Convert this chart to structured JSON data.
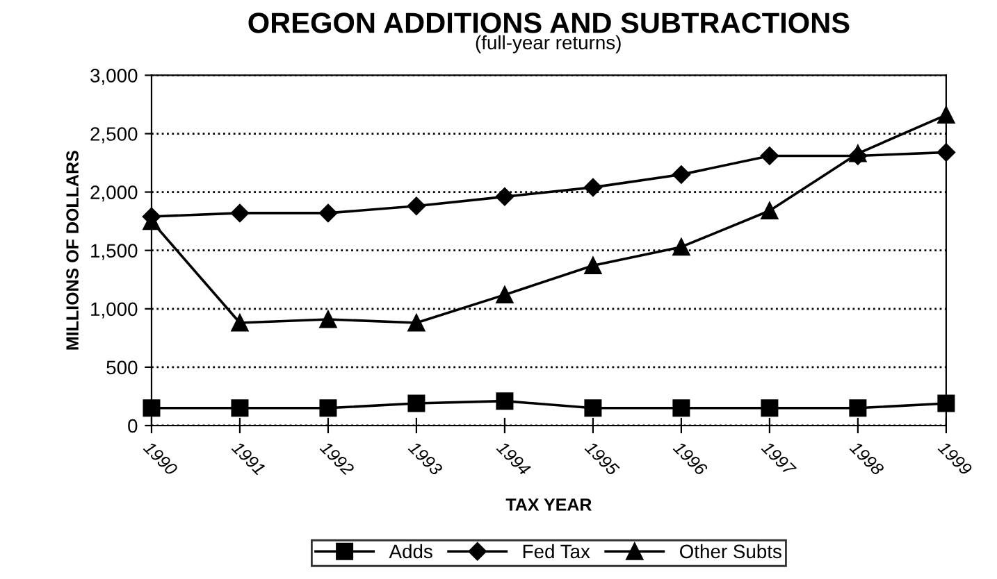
{
  "chart_data": {
    "type": "line",
    "title": "OREGON ADDITIONS AND SUBTRACTIONS",
    "subtitle": "(full-year returns)",
    "xlabel": "TAX YEAR",
    "ylabel": "MILLIONS OF DOLLARS",
    "categories": [
      "1990",
      "1991",
      "1992",
      "1993",
      "1994",
      "1995",
      "1996",
      "1997",
      "1998",
      "1999"
    ],
    "series": [
      {
        "name": "Adds",
        "color": "#000000",
        "marker": "square",
        "values": [
          150,
          150,
          150,
          190,
          210,
          150,
          150,
          150,
          150,
          190
        ]
      },
      {
        "name": "Fed Tax",
        "color": "#000000",
        "marker": "diamond",
        "values": [
          1790,
          1820,
          1820,
          1880,
          1960,
          2040,
          2150,
          2310,
          2310,
          2340
        ]
      },
      {
        "name": "Other Subts",
        "color": "#000000",
        "marker": "triangle",
        "values": [
          1750,
          880,
          910,
          880,
          1120,
          1370,
          1530,
          1840,
          2330,
          2660
        ]
      }
    ],
    "ylim": [
      0,
      3000
    ],
    "yticks": [
      {
        "value": 0,
        "label": "0"
      },
      {
        "value": 500,
        "label": "500"
      },
      {
        "value": 1000,
        "label": "1,000"
      },
      {
        "value": 1500,
        "label": "1,500"
      },
      {
        "value": 2000,
        "label": "2,000"
      },
      {
        "value": 2500,
        "label": "2,500"
      },
      {
        "value": 3000,
        "label": "3,000"
      }
    ],
    "grid": "y",
    "legend": "bottom",
    "line_style": "solid"
  }
}
